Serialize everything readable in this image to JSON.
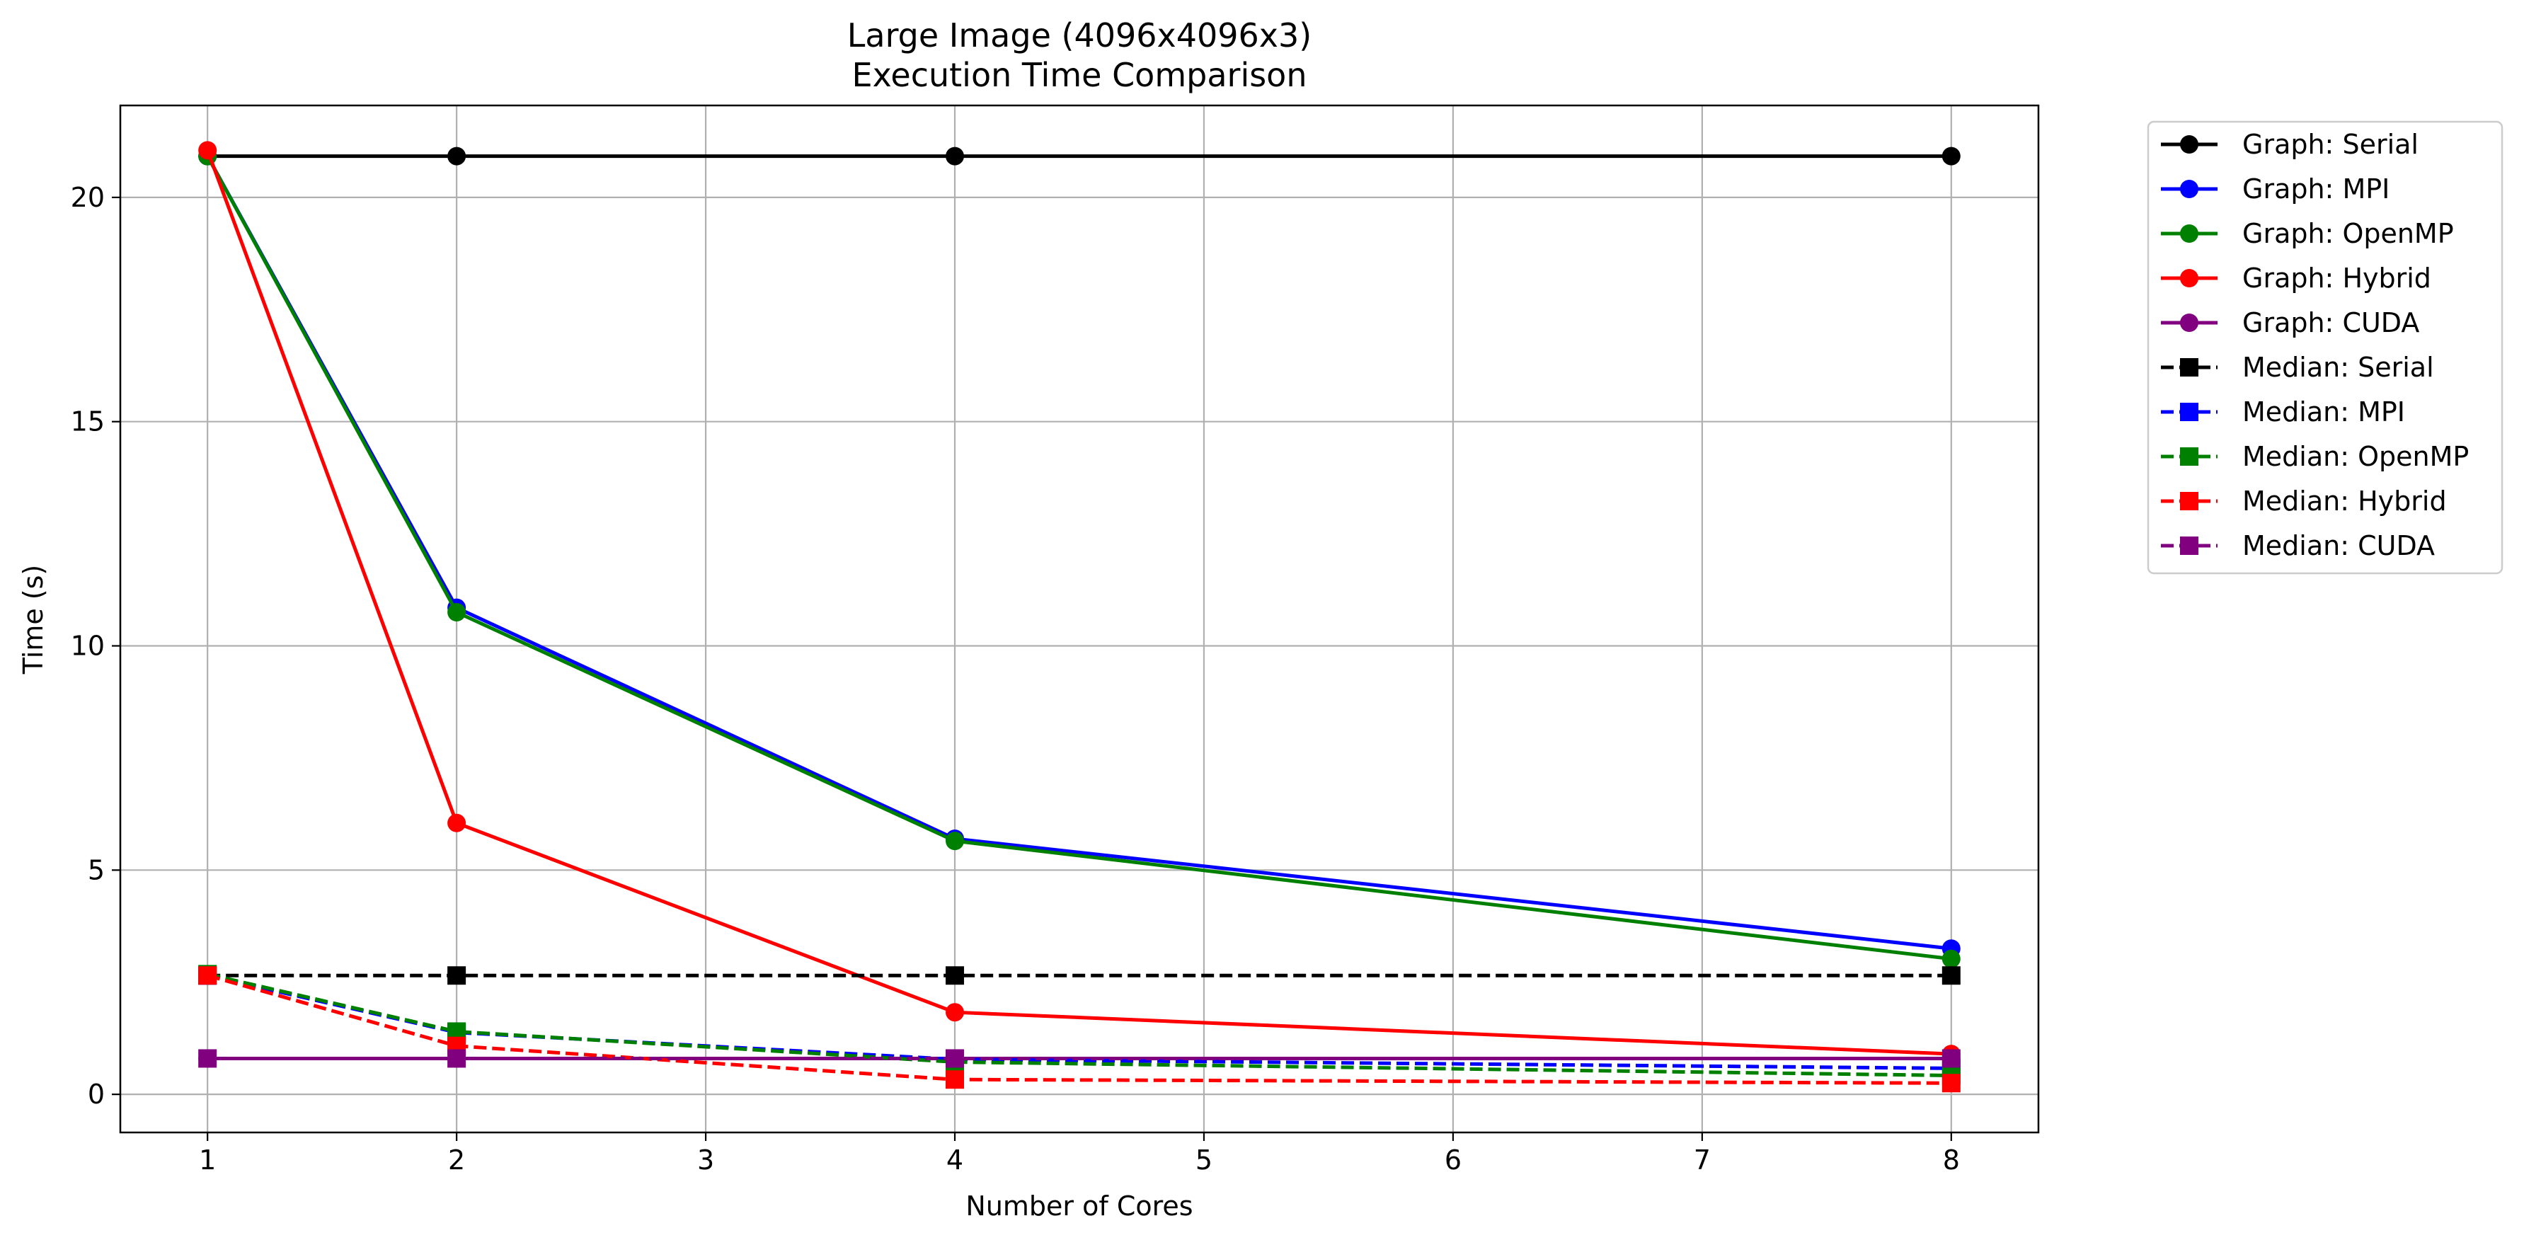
{
  "chart_data": {
    "type": "line",
    "title": "Large Image (4096x4096x3)\nExecution Time Comparison",
    "title_lines": [
      "Large Image (4096x4096x3)",
      "Execution Time Comparison"
    ],
    "xlabel": "Number of Cores",
    "ylabel": "Time (s)",
    "x": [
      1,
      2,
      4,
      8
    ],
    "xlim": [
      0.65,
      8.35
    ],
    "ylim": [
      -0.85,
      22.05
    ],
    "xticks": [
      1,
      2,
      3,
      4,
      5,
      6,
      7,
      8
    ],
    "yticks": [
      0,
      5,
      10,
      15,
      20
    ],
    "grid": true,
    "legend_position": "outside-right-top",
    "series": [
      {
        "name": "Graph: Serial",
        "values": [
          20.92,
          20.92,
          20.92,
          20.92
        ],
        "color": "#000000",
        "marker": "circle",
        "dashed": false
      },
      {
        "name": "Graph: MPI",
        "values": [
          20.92,
          10.85,
          5.7,
          3.25
        ],
        "color": "#0000ff",
        "marker": "circle",
        "dashed": false
      },
      {
        "name": "Graph: OpenMP",
        "values": [
          20.92,
          10.75,
          5.65,
          3.02
        ],
        "color": "#008000",
        "marker": "circle",
        "dashed": false
      },
      {
        "name": "Graph: Hybrid",
        "values": [
          21.05,
          6.05,
          1.83,
          0.9
        ],
        "color": "#ff0000",
        "marker": "circle",
        "dashed": false
      },
      {
        "name": "Graph: CUDA",
        "values": [
          0.8,
          0.8,
          0.8,
          0.8
        ],
        "color": "#800080",
        "marker": "circle",
        "dashed": false
      },
      {
        "name": "Median: Serial",
        "values": [
          2.65,
          2.65,
          2.65,
          2.65
        ],
        "color": "#000000",
        "marker": "square",
        "dashed": true
      },
      {
        "name": "Median: MPI",
        "values": [
          2.65,
          1.38,
          0.78,
          0.58
        ],
        "color": "#0000ff",
        "marker": "square",
        "dashed": true
      },
      {
        "name": "Median: OpenMP",
        "values": [
          2.68,
          1.4,
          0.72,
          0.42
        ],
        "color": "#008000",
        "marker": "square",
        "dashed": true
      },
      {
        "name": "Median: Hybrid",
        "values": [
          2.65,
          1.08,
          0.33,
          0.25
        ],
        "color": "#ff0000",
        "marker": "square",
        "dashed": true
      },
      {
        "name": "Median: CUDA",
        "values": [
          0.8,
          0.8,
          0.8,
          0.8
        ],
        "color": "#800080",
        "marker": "square",
        "dashed": true
      }
    ]
  }
}
